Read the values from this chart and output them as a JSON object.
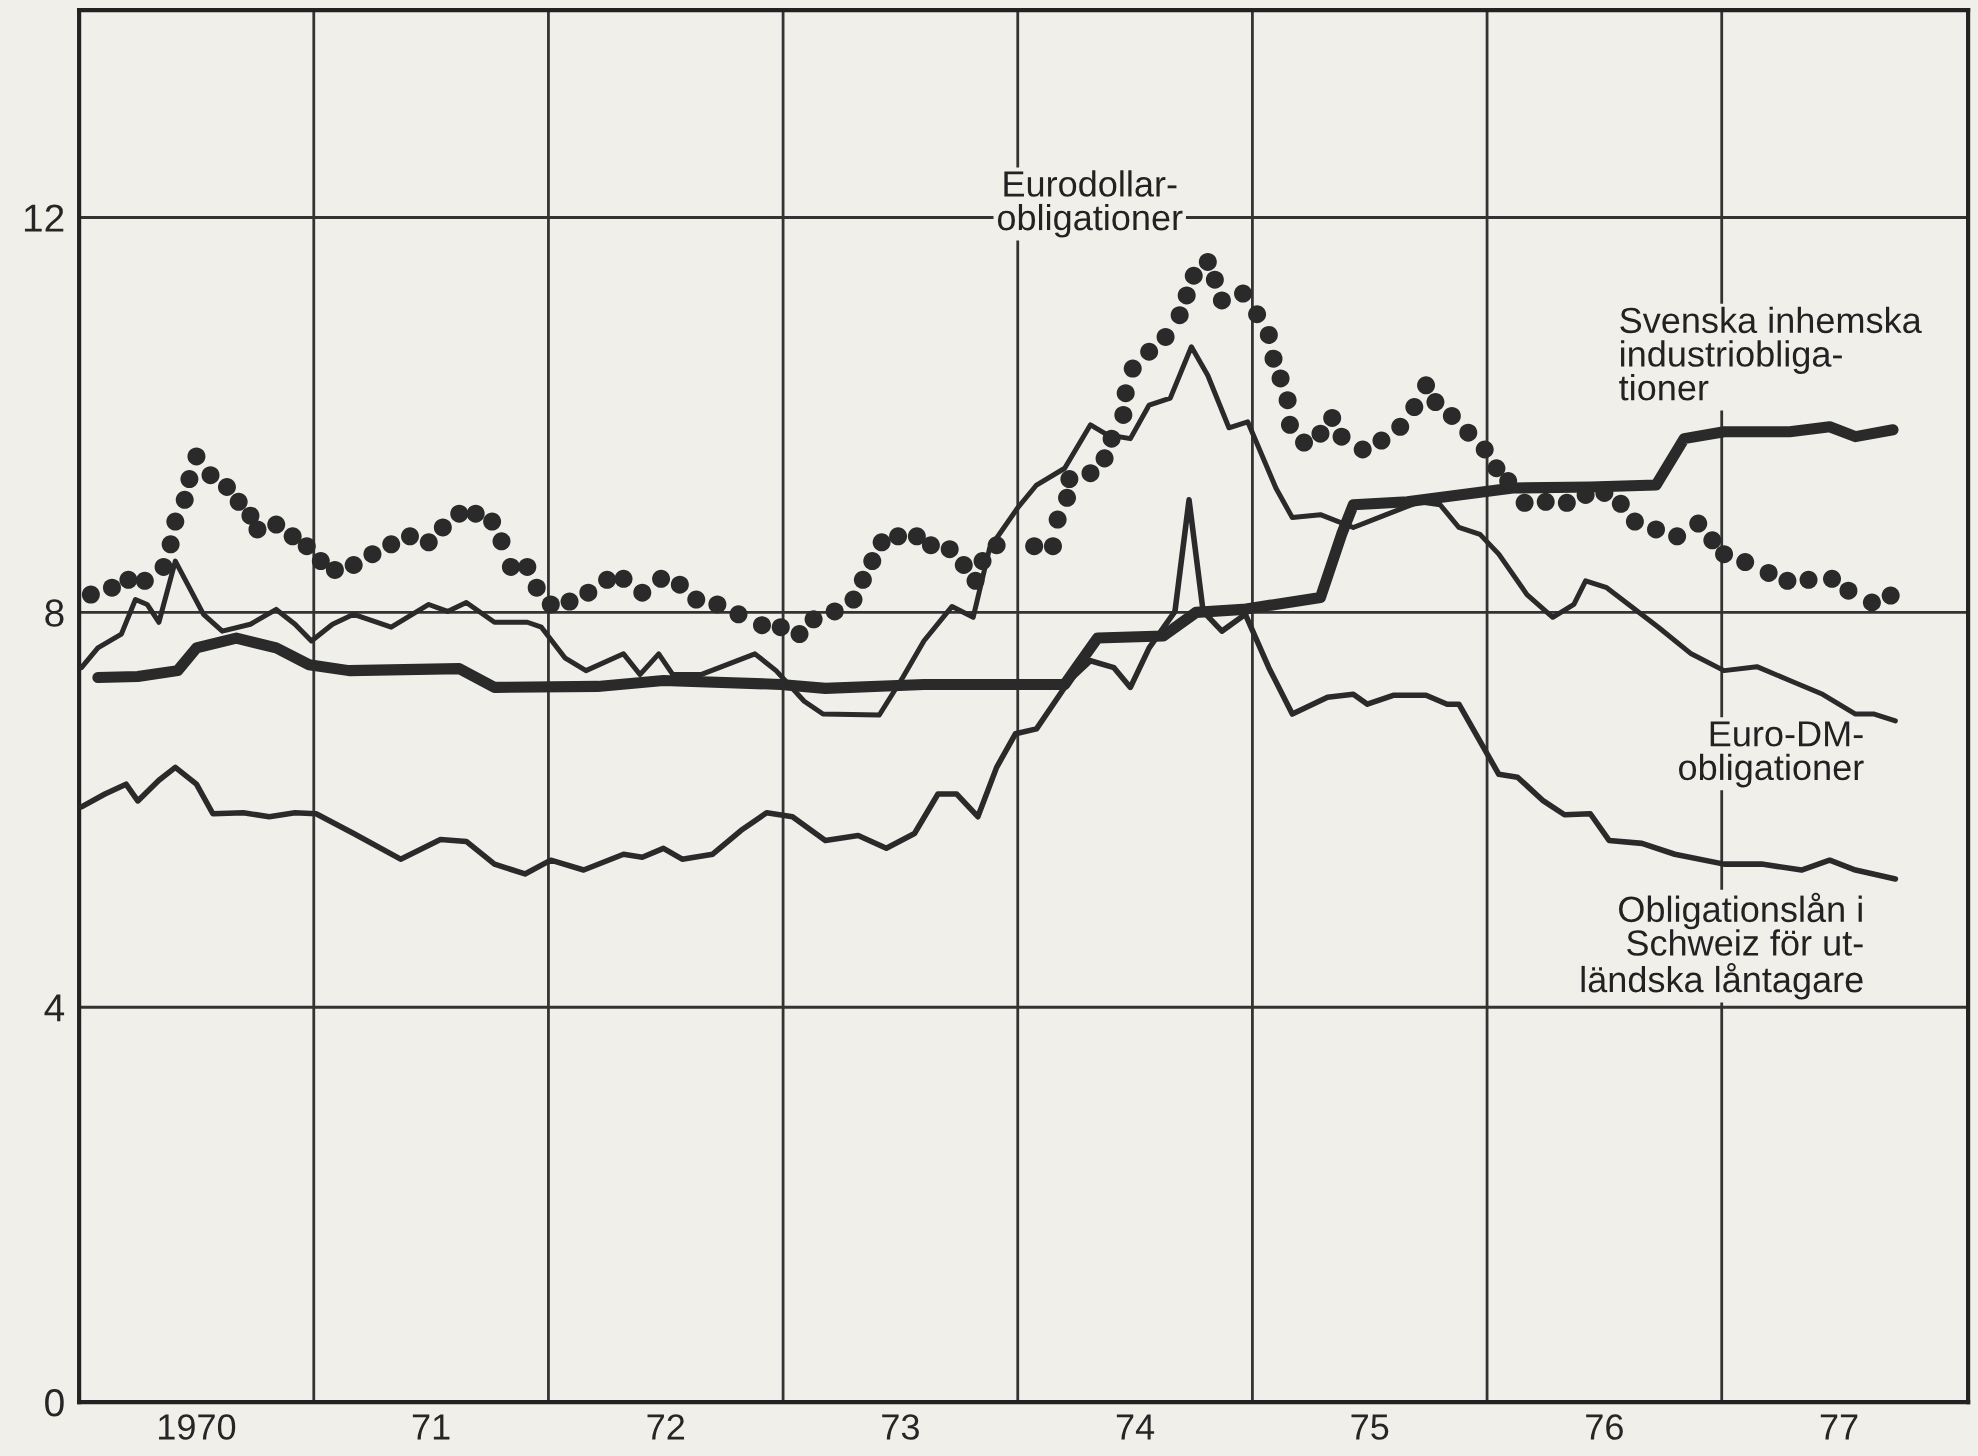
{
  "chart_data": {
    "type": "line",
    "xlim": [
      1969.5,
      1977.55
    ],
    "ylim": [
      0,
      14.1
    ],
    "xticks": [
      1970,
      {
        "value": 1970.5,
        "label": null
      },
      {
        "value": 1971,
        "label": "71"
      },
      {
        "value": 1971.5,
        "label": null
      },
      {
        "value": 1972,
        "label": "72"
      },
      {
        "value": 1972.5,
        "label": null
      },
      {
        "value": 1973,
        "label": "73"
      },
      {
        "value": 1973.5,
        "label": null
      },
      {
        "value": 1974,
        "label": "74"
      },
      {
        "value": 1974.5,
        "label": null
      },
      {
        "value": 1975,
        "label": "75"
      },
      {
        "value": 1975.5,
        "label": null
      },
      {
        "value": 1976,
        "label": "76"
      },
      {
        "value": 1976.5,
        "label": null
      },
      {
        "value": 1977,
        "label": "77"
      }
    ],
    "yticks": [
      0,
      4,
      8,
      12
    ],
    "grid": true,
    "legend": false,
    "series": [
      {
        "name": "Eurodollar-\nobligationer",
        "type": "scatter",
        "marker": "circle",
        "color": "#2a2a2a",
        "x": [
          1969.55,
          1969.64,
          1969.71,
          1969.78,
          1969.86,
          1969.89,
          1969.91,
          1969.95,
          1969.97,
          1970.0,
          1970.06,
          1970.13,
          1970.18,
          1970.23,
          1970.26,
          1970.34,
          1970.41,
          1970.47,
          1970.53,
          1970.59,
          1970.67,
          1970.75,
          1970.83,
          1970.91,
          1970.99,
          1971.05,
          1971.12,
          1971.19,
          1971.26,
          1971.3,
          1971.34,
          1971.41,
          1971.45,
          1971.51,
          1971.59,
          1971.67,
          1971.75,
          1971.82,
          1971.9,
          1971.98,
          1972.06,
          1972.13,
          1972.22,
          1972.31,
          1972.41,
          1972.49,
          1972.57,
          1972.63,
          1972.72,
          1972.8,
          1972.84,
          1972.88,
          1972.92,
          1972.99,
          1973.07,
          1973.13,
          1973.21,
          1973.27,
          1973.32,
          1973.35,
          1973.41,
          1973.57,
          1973.65,
          1973.67,
          1973.71,
          1973.72,
          1973.81,
          1973.87,
          1973.9,
          1973.95,
          1973.96,
          1973.99,
          1974.06,
          1974.13,
          1974.19,
          1974.22,
          1974.25,
          1974.31,
          1974.34,
          1974.37,
          1974.46,
          1974.52,
          1974.57,
          1974.59,
          1974.62,
          1974.65,
          1974.66,
          1974.72,
          1974.79,
          1974.84,
          1974.88,
          1974.97,
          1975.05,
          1975.13,
          1975.19,
          1975.24,
          1975.28,
          1975.35,
          1975.42,
          1975.49,
          1975.54,
          1975.59,
          1975.66,
          1975.75,
          1975.84,
          1975.92,
          1976.0,
          1976.07,
          1976.13,
          1976.22,
          1976.31,
          1976.4,
          1976.46,
          1976.51,
          1976.6,
          1976.7,
          1976.78,
          1976.87,
          1976.97,
          1977.04,
          1977.14,
          1977.22
        ],
        "values": [
          8.18,
          8.25,
          8.33,
          8.32,
          8.46,
          8.69,
          8.92,
          9.14,
          9.35,
          9.58,
          9.39,
          9.27,
          9.12,
          8.98,
          8.84,
          8.89,
          8.77,
          8.67,
          8.52,
          8.43,
          8.48,
          8.59,
          8.69,
          8.77,
          8.71,
          8.86,
          9.0,
          9.0,
          8.92,
          8.72,
          8.46,
          8.46,
          8.25,
          8.08,
          8.11,
          8.2,
          8.33,
          8.34,
          8.2,
          8.34,
          8.28,
          8.13,
          8.08,
          7.98,
          7.87,
          7.85,
          7.78,
          7.93,
          8.01,
          8.13,
          8.33,
          8.52,
          8.71,
          8.77,
          8.77,
          8.68,
          8.64,
          8.48,
          8.32,
          8.52,
          8.68,
          8.67,
          8.67,
          8.94,
          9.16,
          9.35,
          9.41,
          9.56,
          9.76,
          10.0,
          10.22,
          10.47,
          10.64,
          10.79,
          11.01,
          11.21,
          11.41,
          11.55,
          11.37,
          11.16,
          11.23,
          11.02,
          10.81,
          10.57,
          10.37,
          10.15,
          9.9,
          9.72,
          9.81,
          9.97,
          9.78,
          9.65,
          9.74,
          9.88,
          10.08,
          10.3,
          10.13,
          9.99,
          9.82,
          9.65,
          9.46,
          9.33,
          9.11,
          9.12,
          9.11,
          9.19,
          9.21,
          9.1,
          8.92,
          8.84,
          8.77,
          8.9,
          8.73,
          8.59,
          8.51,
          8.4,
          8.32,
          8.33,
          8.34,
          8.22,
          8.1,
          8.17
        ]
      },
      {
        "name": "Svenska inhemska\nindustriobliga-\ntioner",
        "color": "#2a2a2a",
        "x": [
          1969.58,
          1969.75,
          1969.92,
          1970.0,
          1970.17,
          1970.34,
          1970.48,
          1970.65,
          1971.12,
          1971.27,
          1971.71,
          1971.99,
          1972.49,
          1972.68,
          1973.1,
          1973.5,
          1973.7,
          1973.75,
          1973.84,
          1974.12,
          1974.26,
          1974.46,
          1974.79,
          1974.88,
          1974.93,
          1975.16,
          1975.61,
          1975.94,
          1976.22,
          1976.34,
          1976.51,
          1976.79,
          1976.96,
          1977.07,
          1977.23
        ],
        "values": [
          7.34,
          7.35,
          7.41,
          7.64,
          7.74,
          7.64,
          7.47,
          7.41,
          7.43,
          7.24,
          7.25,
          7.31,
          7.27,
          7.23,
          7.27,
          7.27,
          7.27,
          7.44,
          7.74,
          7.76,
          8.0,
          8.03,
          8.15,
          8.79,
          9.09,
          9.12,
          9.26,
          9.27,
          9.29,
          9.76,
          9.83,
          9.83,
          9.88,
          9.78,
          9.85
        ]
      },
      {
        "name": "Euro-DM-\nobligationer",
        "color": "#2a2a2a",
        "x": [
          1969.51,
          1969.58,
          1969.68,
          1969.74,
          1969.79,
          1969.84,
          1969.91,
          1970.03,
          1970.11,
          1970.23,
          1970.34,
          1970.42,
          1970.49,
          1970.58,
          1970.67,
          1970.83,
          1970.99,
          1971.07,
          1971.15,
          1971.27,
          1971.41,
          1971.47,
          1971.57,
          1971.66,
          1971.82,
          1971.89,
          1971.97,
          1972.03,
          1972.15,
          1972.38,
          1972.47,
          1972.59,
          1972.67,
          1972.91,
          1973.01,
          1973.1,
          1973.22,
          1973.31,
          1973.38,
          1973.5,
          1973.58,
          1973.7,
          1973.81,
          1973.88,
          1973.98,
          1974.06,
          1974.15,
          1974.24,
          1974.31,
          1974.4,
          1974.48,
          1974.6,
          1974.67,
          1974.79,
          1974.93,
          1975.07,
          1975.21,
          1975.3,
          1975.38,
          1975.47,
          1975.55,
          1975.67,
          1975.78,
          1975.87,
          1975.92,
          1976.01,
          1976.12,
          1976.23,
          1976.37,
          1976.51,
          1976.65,
          1976.79,
          1976.93,
          1977.07,
          1977.15,
          1977.24
        ],
        "values": [
          7.44,
          7.64,
          7.78,
          8.13,
          8.08,
          7.9,
          8.52,
          7.98,
          7.81,
          7.88,
          8.03,
          7.88,
          7.71,
          7.88,
          7.98,
          7.85,
          8.08,
          8.01,
          8.1,
          7.9,
          7.9,
          7.85,
          7.54,
          7.41,
          7.58,
          7.37,
          7.58,
          7.37,
          7.37,
          7.58,
          7.41,
          7.1,
          6.97,
          6.96,
          7.34,
          7.71,
          8.06,
          7.95,
          8.65,
          9.06,
          9.29,
          9.46,
          9.9,
          9.8,
          9.76,
          10.1,
          10.17,
          10.69,
          10.4,
          9.87,
          9.93,
          9.26,
          8.96,
          8.99,
          8.86,
          8.99,
          9.12,
          9.09,
          8.86,
          8.79,
          8.59,
          8.18,
          7.95,
          8.08,
          8.32,
          8.25,
          8.05,
          7.85,
          7.58,
          7.41,
          7.45,
          7.31,
          7.17,
          6.97,
          6.97,
          6.9
        ]
      },
      {
        "name": "Obligationslån i\nSchweiz för ut-\nländska låntagare",
        "color": "#2a2a2a",
        "x": [
          1969.51,
          1969.61,
          1969.7,
          1969.75,
          1969.84,
          1969.91,
          1970.0,
          1970.07,
          1970.2,
          1970.31,
          1970.42,
          1970.51,
          1970.67,
          1970.87,
          1971.04,
          1971.15,
          1971.27,
          1971.4,
          1971.51,
          1971.65,
          1971.82,
          1971.9,
          1971.99,
          1972.07,
          1972.2,
          1972.32,
          1972.43,
          1972.54,
          1972.68,
          1972.82,
          1972.94,
          1973.06,
          1973.16,
          1973.24,
          1973.33,
          1973.41,
          1973.49,
          1973.58,
          1973.72,
          1973.81,
          1973.91,
          1973.98,
          1974.06,
          1974.17,
          1974.23,
          1974.29,
          1974.37,
          1974.47,
          1974.57,
          1974.67,
          1974.82,
          1974.93,
          1974.99,
          1975.1,
          1975.24,
          1975.33,
          1975.38,
          1975.55,
          1975.63,
          1975.74,
          1975.83,
          1975.94,
          1976.02,
          1976.16,
          1976.3,
          1976.51,
          1976.67,
          1976.84,
          1976.96,
          1977.07,
          1977.24
        ],
        "values": [
          6.03,
          6.16,
          6.26,
          6.09,
          6.3,
          6.43,
          6.26,
          5.96,
          5.97,
          5.93,
          5.97,
          5.96,
          5.76,
          5.5,
          5.7,
          5.68,
          5.45,
          5.35,
          5.49,
          5.39,
          5.55,
          5.52,
          5.61,
          5.5,
          5.55,
          5.79,
          5.97,
          5.93,
          5.69,
          5.74,
          5.61,
          5.76,
          6.16,
          6.16,
          5.93,
          6.43,
          6.77,
          6.82,
          7.31,
          7.51,
          7.44,
          7.24,
          7.64,
          8.01,
          9.14,
          8.01,
          7.81,
          7.98,
          7.44,
          6.97,
          7.14,
          7.17,
          7.07,
          7.16,
          7.16,
          7.07,
          7.07,
          6.36,
          6.33,
          6.09,
          5.95,
          5.96,
          5.69,
          5.66,
          5.55,
          5.45,
          5.45,
          5.39,
          5.49,
          5.39,
          5.3
        ]
      }
    ]
  }
}
